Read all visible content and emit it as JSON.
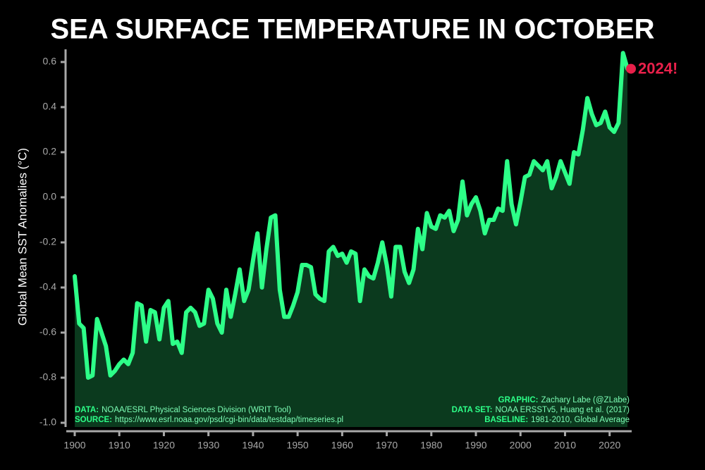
{
  "chart_data": {
    "type": "area-line",
    "title": "SEA SURFACE TEMPERATURE IN OCTOBER",
    "y_label": "Global Mean SST Anomalies (°C)",
    "annotation": "2024!",
    "annotation_color": "#e8204a",
    "line_color": "#2dff88",
    "fill_color": "#0b3a1e",
    "x": [
      1900,
      1901,
      1902,
      1903,
      1904,
      1905,
      1906,
      1907,
      1908,
      1909,
      1910,
      1911,
      1912,
      1913,
      1914,
      1915,
      1916,
      1917,
      1918,
      1919,
      1920,
      1921,
      1922,
      1923,
      1924,
      1925,
      1926,
      1927,
      1928,
      1929,
      1930,
      1931,
      1932,
      1933,
      1934,
      1935,
      1936,
      1937,
      1938,
      1939,
      1940,
      1941,
      1942,
      1943,
      1944,
      1945,
      1946,
      1947,
      1948,
      1949,
      1950,
      1951,
      1952,
      1953,
      1954,
      1955,
      1956,
      1957,
      1958,
      1959,
      1960,
      1961,
      1962,
      1963,
      1964,
      1965,
      1966,
      1967,
      1968,
      1969,
      1970,
      1971,
      1972,
      1973,
      1974,
      1975,
      1976,
      1977,
      1978,
      1979,
      1980,
      1981,
      1982,
      1983,
      1984,
      1985,
      1986,
      1987,
      1988,
      1989,
      1990,
      1991,
      1992,
      1993,
      1994,
      1995,
      1996,
      1997,
      1998,
      1999,
      2000,
      2001,
      2002,
      2003,
      2004,
      2005,
      2006,
      2007,
      2008,
      2009,
      2010,
      2011,
      2012,
      2013,
      2014,
      2015,
      2016,
      2017,
      2018,
      2019,
      2020,
      2021,
      2022,
      2023,
      2024
    ],
    "values": [
      -0.35,
      -0.56,
      -0.58,
      -0.8,
      -0.79,
      -0.54,
      -0.6,
      -0.66,
      -0.79,
      -0.77,
      -0.74,
      -0.72,
      -0.74,
      -0.69,
      -0.47,
      -0.48,
      -0.64,
      -0.5,
      -0.51,
      -0.63,
      -0.49,
      -0.46,
      -0.65,
      -0.64,
      -0.69,
      -0.51,
      -0.49,
      -0.51,
      -0.57,
      -0.56,
      -0.41,
      -0.45,
      -0.56,
      -0.6,
      -0.41,
      -0.53,
      -0.43,
      -0.32,
      -0.46,
      -0.41,
      -0.28,
      -0.16,
      -0.4,
      -0.23,
      -0.09,
      -0.08,
      -0.41,
      -0.53,
      -0.53,
      -0.48,
      -0.42,
      -0.3,
      -0.3,
      -0.31,
      -0.43,
      -0.45,
      -0.46,
      -0.24,
      -0.22,
      -0.26,
      -0.25,
      -0.29,
      -0.24,
      -0.25,
      -0.46,
      -0.32,
      -0.35,
      -0.36,
      -0.29,
      -0.2,
      -0.3,
      -0.44,
      -0.22,
      -0.22,
      -0.33,
      -0.38,
      -0.32,
      -0.14,
      -0.23,
      -0.07,
      -0.13,
      -0.14,
      -0.08,
      -0.09,
      -0.06,
      -0.15,
      -0.1,
      0.07,
      -0.08,
      -0.03,
      0.0,
      -0.06,
      -0.16,
      -0.1,
      -0.1,
      -0.05,
      -0.06,
      0.16,
      -0.03,
      -0.12,
      -0.02,
      0.09,
      0.1,
      0.16,
      0.14,
      0.12,
      0.16,
      0.04,
      0.09,
      0.16,
      0.11,
      0.06,
      0.2,
      0.19,
      0.3,
      0.44,
      0.37,
      0.32,
      0.33,
      0.38,
      0.31,
      0.29,
      0.33,
      0.64,
      0.57
    ],
    "xlim": [
      1900,
      2024
    ],
    "xticks": [
      1900,
      1910,
      1920,
      1930,
      1940,
      1950,
      1960,
      1970,
      1980,
      1990,
      2000,
      2010,
      2020
    ],
    "ylim": [
      -1.0,
      0.65
    ],
    "yticks": [
      {
        "value": -1.0,
        "label": "-1.0"
      },
      -0.8,
      -0.6,
      -0.4,
      -0.2,
      {
        "value": 0.0,
        "label": "0.0"
      },
      0.2,
      0.4,
      0.6
    ],
    "footer_left": [
      {
        "label": "DATA:",
        "text": "NOAA/ESRL Physical Sciences Division (WRIT Tool)"
      },
      {
        "label": "SOURCE:",
        "text": "https://www.esrl.noaa.gov/psd/cgi-bin/data/testdap/timeseries.pl"
      }
    ],
    "footer_right": [
      {
        "label": "GRAPHIC:",
        "text": "Zachary Labe (@ZLabe)"
      },
      {
        "label": "DATA SET:",
        "text": "NOAA ERSSTv5, Huang et al. (2017)"
      },
      {
        "label": "BASELINE:",
        "text": "1981-2010, Global Average"
      }
    ]
  }
}
